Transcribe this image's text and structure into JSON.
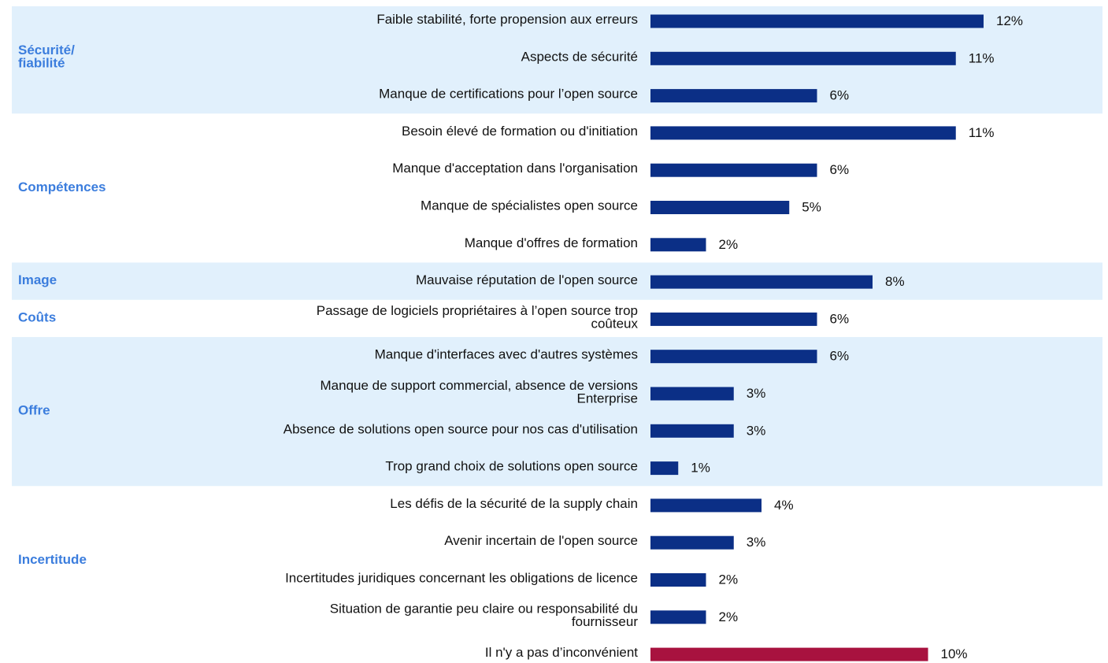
{
  "chart_data": {
    "type": "bar",
    "orientation": "horizontal",
    "groups": [
      {
        "label": "Sécurité/\nfiabilité",
        "color": "#0b2f86",
        "categories": [
          "Faible stabilité, forte propension aux erreurs",
          "Aspects de sécurité",
          "Manque de certifications pour l’open source"
        ],
        "values": [
          12,
          11,
          6
        ],
        "value_labels": [
          "12%",
          "11%",
          "6%"
        ]
      },
      {
        "label": "Compétences",
        "color": "#0b2f86",
        "categories": [
          "Besoin élevé de formation ou d'initiation",
          "Manque d'acceptation dans l'organisation",
          "Manque de spécialistes open source",
          "Manque d'offres de formation"
        ],
        "values": [
          11,
          6,
          5,
          2
        ],
        "value_labels": [
          "11%",
          "6%",
          "5%",
          "2%"
        ]
      },
      {
        "label": "Image",
        "color": "#0b2f86",
        "categories": [
          "Mauvaise réputation de l'open source"
        ],
        "values": [
          8
        ],
        "value_labels": [
          "8%"
        ]
      },
      {
        "label": "Coûts",
        "color": "#0b2f86",
        "categories": [
          "Passage de logiciels propriétaires à l’open source trop\ncoûteux"
        ],
        "values": [
          6
        ],
        "value_labels": [
          "6%"
        ]
      },
      {
        "label": "Offre",
        "color": "#0b2f86",
        "categories": [
          "Manque d'interfaces avec d'autres systèmes",
          "Manque de support commercial, absence de versions\nEnterprise",
          "Absence de solutions open source pour nos cas d'utilisation",
          "Trop grand choix de solutions open source"
        ],
        "values": [
          6,
          3,
          3,
          1
        ],
        "value_labels": [
          "6%",
          "3%",
          "3%",
          "1%"
        ]
      },
      {
        "label": "Incertitude",
        "color": "#0b2f86",
        "categories": [
          "Les défis de la sécurité de la supply chain",
          "Avenir incertain de l'open source",
          "Incertitudes juridiques concernant les obligations de licence",
          "Situation de garantie peu claire ou responsabilité du\nfournisseur"
        ],
        "values": [
          4,
          3,
          2,
          2
        ],
        "value_labels": [
          "4%",
          "3%",
          "2%",
          "2%"
        ]
      },
      {
        "color": "#a8123f",
        "categories": [
          "Il n'y a pas d’inconvénient"
        ],
        "values": [
          10
        ],
        "value_labels": [
          "10%"
        ]
      }
    ]
  }
}
